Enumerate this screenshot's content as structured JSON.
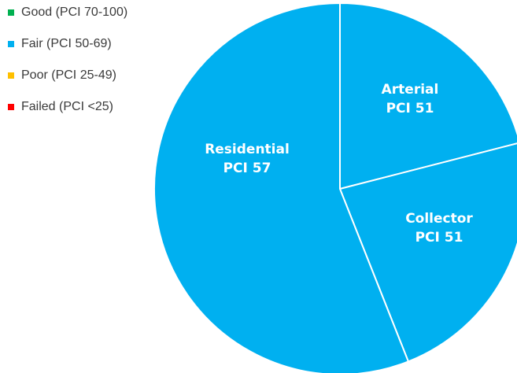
{
  "chart_data": {
    "type": "pie",
    "categories": [
      "Arterial",
      "Collector",
      "Residential"
    ],
    "values": [
      21,
      23,
      56
    ],
    "sublabels": [
      "PCI 51",
      "PCI 51",
      "PCI 57"
    ],
    "colors": [
      "#00b0f0",
      "#00b0f0",
      "#00b0f0"
    ],
    "legend": [
      {
        "name": "Good (PCI 70-100)",
        "color": "#00b050"
      },
      {
        "name": "Fair (PCI 50-69)",
        "color": "#00b0f0"
      },
      {
        "name": "Poor (PCI 25-49)",
        "color": "#ffc000"
      },
      {
        "name": "Failed (PCI <25)",
        "color": "#ff0000"
      }
    ]
  }
}
